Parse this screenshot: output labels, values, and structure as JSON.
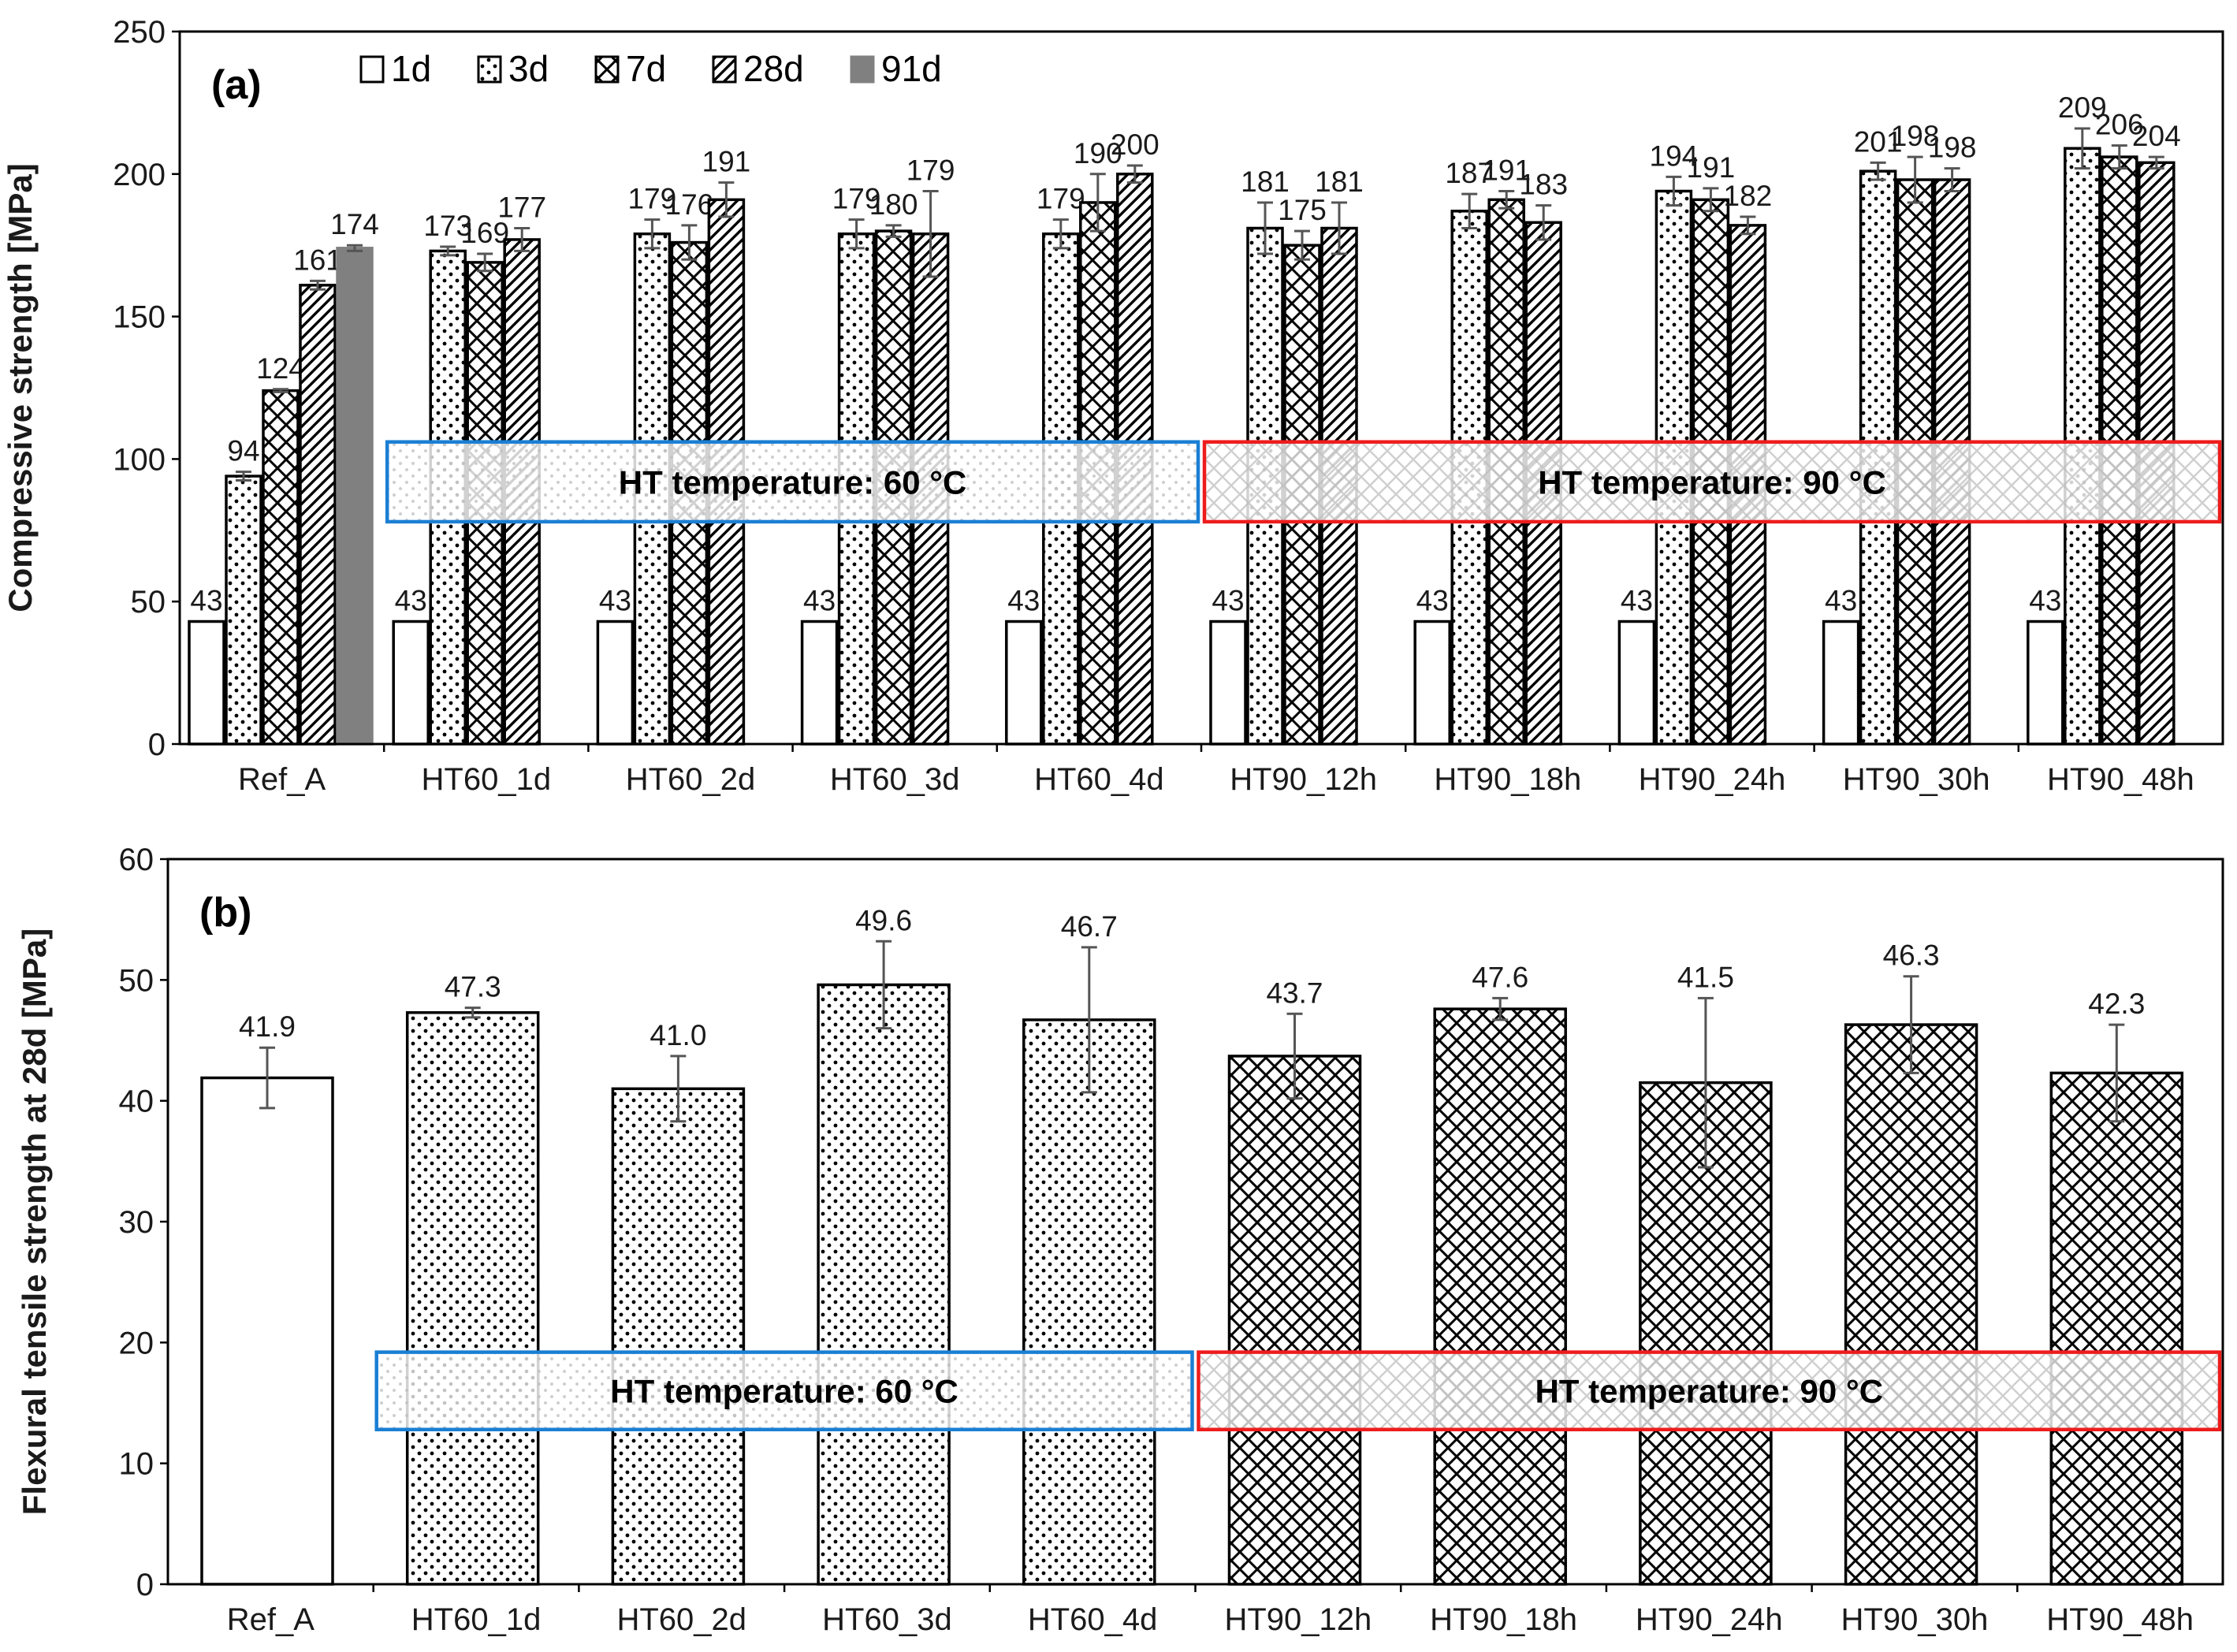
{
  "colors": {
    "blue_box": "#1a7fd4",
    "red_box": "#ee1c1c",
    "solid_91d": "#808080",
    "error_bar": "#555555"
  },
  "chart_data": [
    {
      "panel_label": "(a)",
      "type": "bar",
      "ylabel": "Compressive strength [MPa]",
      "ylim": [
        0,
        250
      ],
      "yticks": [
        "0",
        "50",
        "100",
        "150",
        "200",
        "250"
      ],
      "categories": [
        "Ref_A",
        "HT60_1d",
        "HT60_2d",
        "HT60_3d",
        "HT60_4d",
        "HT90_12h",
        "HT90_18h",
        "HT90_24h",
        "HT90_30h",
        "HT90_48h"
      ],
      "legend": [
        {
          "label": "1d",
          "pattern": "empty"
        },
        {
          "label": "3d",
          "pattern": "dots"
        },
        {
          "label": "7d",
          "pattern": "cross"
        },
        {
          "label": "28d",
          "pattern": "diag"
        },
        {
          "label": "91d",
          "pattern": "solid"
        }
      ],
      "groups": [
        {
          "category": "Ref_A",
          "bars": [
            {
              "pattern": "empty",
              "value": 43,
              "label": "43",
              "err": 0
            },
            {
              "pattern": "dots",
              "value": 94,
              "label": "94",
              "err": 1.5
            },
            {
              "pattern": "cross",
              "value": 124,
              "label": "124",
              "err": 0.5
            },
            {
              "pattern": "diag",
              "value": 161,
              "label": "161",
              "err": 1.5
            },
            {
              "pattern": "solid",
              "value": 174,
              "label": "174",
              "err": 1
            }
          ]
        },
        {
          "category": "HT60_1d",
          "bars": [
            {
              "pattern": "empty",
              "value": 43,
              "label": "43",
              "err": 0
            },
            {
              "pattern": "dots",
              "value": 173,
              "label": "173",
              "err": 1.5
            },
            {
              "pattern": "cross",
              "value": 169,
              "label": "169",
              "err": 3
            },
            {
              "pattern": "diag",
              "value": 177,
              "label": "177",
              "err": 4
            }
          ]
        },
        {
          "category": "HT60_2d",
          "bars": [
            {
              "pattern": "empty",
              "value": 43,
              "label": "43",
              "err": 0
            },
            {
              "pattern": "dots",
              "value": 179,
              "label": "179",
              "err": 5
            },
            {
              "pattern": "cross",
              "value": 176,
              "label": "176",
              "err": 6
            },
            {
              "pattern": "diag",
              "value": 191,
              "label": "191",
              "err": 6
            }
          ]
        },
        {
          "category": "HT60_3d",
          "bars": [
            {
              "pattern": "empty",
              "value": 43,
              "label": "43",
              "err": 0
            },
            {
              "pattern": "dots",
              "value": 179,
              "label": "179",
              "err": 5
            },
            {
              "pattern": "cross",
              "value": 180,
              "label": "180",
              "err": 2
            },
            {
              "pattern": "diag",
              "value": 179,
              "label": "179",
              "err": 15
            }
          ]
        },
        {
          "category": "HT60_4d",
          "bars": [
            {
              "pattern": "empty",
              "value": 43,
              "label": "43",
              "err": 0
            },
            {
              "pattern": "dots",
              "value": 179,
              "label": "179",
              "err": 5
            },
            {
              "pattern": "cross",
              "value": 190,
              "label": "190",
              "err": 10
            },
            {
              "pattern": "diag",
              "value": 200,
              "label": "200",
              "err": 3
            }
          ]
        },
        {
          "category": "HT90_12h",
          "bars": [
            {
              "pattern": "empty",
              "value": 43,
              "label": "43",
              "err": 0
            },
            {
              "pattern": "dots",
              "value": 181,
              "label": "181",
              "err": 9
            },
            {
              "pattern": "cross",
              "value": 175,
              "label": "175",
              "err": 5
            },
            {
              "pattern": "diag",
              "value": 181,
              "label": "181",
              "err": 9
            }
          ]
        },
        {
          "category": "HT90_18h",
          "bars": [
            {
              "pattern": "empty",
              "value": 43,
              "label": "43",
              "err": 0
            },
            {
              "pattern": "dots",
              "value": 187,
              "label": "187",
              "err": 6
            },
            {
              "pattern": "cross",
              "value": 191,
              "label": "191",
              "err": 3
            },
            {
              "pattern": "diag",
              "value": 183,
              "label": "183",
              "err": 6
            }
          ]
        },
        {
          "category": "HT90_24h",
          "bars": [
            {
              "pattern": "empty",
              "value": 43,
              "label": "43",
              "err": 0
            },
            {
              "pattern": "dots",
              "value": 194,
              "label": "194",
              "err": 5
            },
            {
              "pattern": "cross",
              "value": 191,
              "label": "191",
              "err": 4
            },
            {
              "pattern": "diag",
              "value": 182,
              "label": "182",
              "err": 3
            }
          ]
        },
        {
          "category": "HT90_30h",
          "bars": [
            {
              "pattern": "empty",
              "value": 43,
              "label": "43",
              "err": 0
            },
            {
              "pattern": "dots",
              "value": 201,
              "label": "201",
              "err": 3
            },
            {
              "pattern": "cross",
              "value": 198,
              "label": "198",
              "err": 8
            },
            {
              "pattern": "diag",
              "value": 198,
              "label": "198",
              "err": 4
            }
          ]
        },
        {
          "category": "HT90_48h",
          "bars": [
            {
              "pattern": "empty",
              "value": 43,
              "label": "43",
              "err": 0
            },
            {
              "pattern": "dots",
              "value": 209,
              "label": "209",
              "err": 7
            },
            {
              "pattern": "cross",
              "value": 206,
              "label": "206",
              "err": 4
            },
            {
              "pattern": "diag",
              "value": 204,
              "label": "204",
              "err": 2
            }
          ]
        }
      ],
      "annotations": [
        {
          "text": "HT temperature: 60 °C",
          "color": "blue",
          "from_category": "HT60_1d",
          "to_category": "HT60_4d",
          "ylim": [
            78,
            106
          ]
        },
        {
          "text": "HT temperature: 90 °C",
          "color": "red",
          "from_category": "HT90_12h",
          "to_category": "HT90_48h",
          "ylim": [
            78,
            106
          ]
        }
      ]
    },
    {
      "panel_label": "(b)",
      "type": "bar",
      "ylabel": "Flexural tensile strength at 28d [MPa]",
      "ylim": [
        0,
        60
      ],
      "yticks": [
        "0",
        "10",
        "20",
        "30",
        "40",
        "50",
        "60"
      ],
      "categories": [
        "Ref_A",
        "HT60_1d",
        "HT60_2d",
        "HT60_3d",
        "HT60_4d",
        "HT90_12h",
        "HT90_18h",
        "HT90_24h",
        "HT90_30h",
        "HT90_48h"
      ],
      "bars": [
        {
          "category": "Ref_A",
          "pattern": "empty",
          "value": 41.9,
          "label": "41.9",
          "err": 2.5
        },
        {
          "category": "HT60_1d",
          "pattern": "dots",
          "value": 47.3,
          "label": "47.3",
          "err": 0.4
        },
        {
          "category": "HT60_2d",
          "pattern": "dots",
          "value": 41.0,
          "label": "41.0",
          "err": 2.7
        },
        {
          "category": "HT60_3d",
          "pattern": "dots",
          "value": 49.6,
          "label": "49.6",
          "err": 3.6
        },
        {
          "category": "HT60_4d",
          "pattern": "dots",
          "value": 46.7,
          "label": "46.7",
          "err": 6.0
        },
        {
          "category": "HT90_12h",
          "pattern": "cross",
          "value": 43.7,
          "label": "43.7",
          "err": 3.5
        },
        {
          "category": "HT90_18h",
          "pattern": "cross",
          "value": 47.6,
          "label": "47.6",
          "err": 0.9
        },
        {
          "category": "HT90_24h",
          "pattern": "cross",
          "value": 41.5,
          "label": "41.5",
          "err": 7.0
        },
        {
          "category": "HT90_30h",
          "pattern": "cross",
          "value": 46.3,
          "label": "46.3",
          "err": 4.0
        },
        {
          "category": "HT90_48h",
          "pattern": "cross",
          "value": 42.3,
          "label": "42.3",
          "err": 4.0
        }
      ],
      "annotations": [
        {
          "text": "HT temperature: 60 °C",
          "color": "blue",
          "from_category": "HT60_1d",
          "to_category": "HT60_4d",
          "ylim": [
            12.8,
            19.2
          ]
        },
        {
          "text": "HT temperature: 90 °C",
          "color": "red",
          "from_category": "HT90_12h",
          "to_category": "HT90_48h",
          "ylim": [
            12.8,
            19.2
          ]
        }
      ]
    }
  ]
}
